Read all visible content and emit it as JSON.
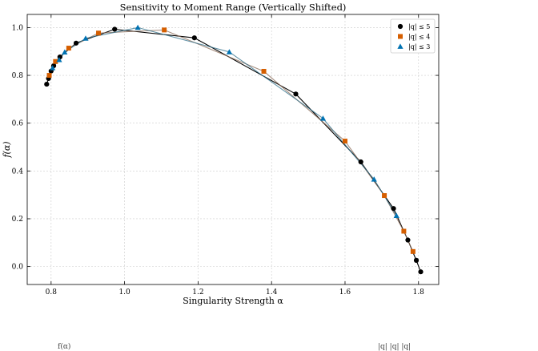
{
  "chart_data": {
    "type": "line",
    "title": "Sensitivity to Moment Range (Vertically Shifted)",
    "xlabel": "Singularity Strength α",
    "ylabel": "f(α)",
    "xlim": [
      0.735,
      1.855
    ],
    "ylim": [
      -0.075,
      1.055
    ],
    "xticks": [
      0.8,
      1.0,
      1.2,
      1.4,
      1.6,
      1.8
    ],
    "yticks": [
      0.0,
      0.2,
      0.4,
      0.6,
      0.8,
      1.0
    ],
    "x_tick_labels": [
      "0.8",
      "1.0",
      "1.2",
      "1.4",
      "1.6",
      "1.8"
    ],
    "y_tick_labels": [
      "0.0",
      "0.2",
      "0.4",
      "0.6",
      "0.8",
      "1.0"
    ],
    "grid": true,
    "legend_position": "top-right",
    "series": [
      {
        "name": "|q| ≤ 5",
        "marker": "circle",
        "color": "#000000",
        "x": [
          0.788,
          0.793,
          0.8,
          0.807,
          0.824,
          0.868,
          0.973,
          1.19,
          1.466,
          1.643,
          1.732,
          1.771,
          1.794,
          1.806
        ],
        "y": [
          0.763,
          0.787,
          0.818,
          0.84,
          0.877,
          0.935,
          0.993,
          0.957,
          0.722,
          0.438,
          0.243,
          0.111,
          0.026,
          -0.022
        ]
      },
      {
        "name": "|q| ≤ 4",
        "marker": "square",
        "color": "#d55e00",
        "x": [
          0.795,
          0.812,
          0.848,
          0.929,
          1.108,
          1.379,
          1.6,
          1.707,
          1.76,
          1.785
        ],
        "y": [
          0.8,
          0.858,
          0.914,
          0.977,
          0.99,
          0.817,
          0.525,
          0.297,
          0.148,
          0.063
        ]
      },
      {
        "name": "|q| ≤ 3",
        "marker": "triangle",
        "color": "#0072b2",
        "x": [
          0.804,
          0.822,
          0.837,
          0.894,
          1.036,
          1.285,
          1.54,
          1.679,
          1.74
        ],
        "y": [
          0.831,
          0.865,
          0.897,
          0.955,
          1.0,
          0.898,
          0.62,
          0.365,
          0.213
        ]
      }
    ]
  },
  "captions": {
    "left": "f(α)",
    "right": "|q| |q| |q|"
  }
}
